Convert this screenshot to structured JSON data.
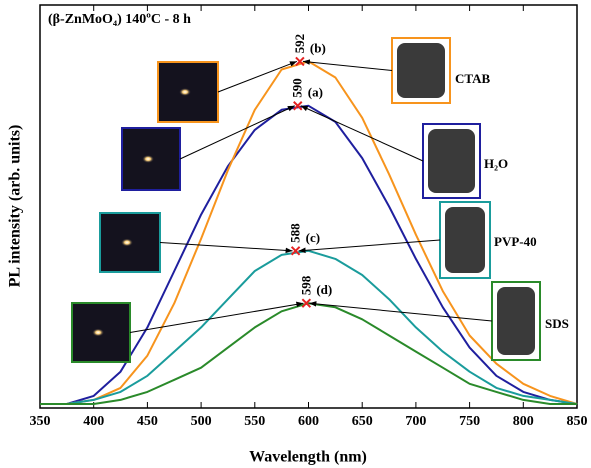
{
  "chart_data": {
    "type": "line",
    "title": "(β-ZnMoO₄) 140ºC - 8 h",
    "x_label": "Wavelength (nm)",
    "y_label": "PL intensity (arb. units)",
    "x": [
      350,
      375,
      400,
      425,
      450,
      475,
      500,
      525,
      550,
      575,
      600,
      625,
      650,
      675,
      700,
      725,
      750,
      775,
      800,
      825,
      850
    ],
    "series": [
      {
        "color": "#1f1f9e",
        "values": [
          1,
          1,
          3,
          9,
          20,
          34,
          48,
          60,
          69,
          74,
          75,
          71,
          62,
          50,
          37,
          25,
          15,
          8,
          4,
          2,
          1
        ]
      },
      {
        "color": "#f7941d",
        "values": [
          1,
          1,
          2,
          5,
          13,
          26,
          42,
          59,
          74,
          84,
          86,
          82,
          72,
          58,
          43,
          29,
          18,
          11,
          6,
          3,
          1
        ]
      },
      {
        "color": "#1a9c9c",
        "values": [
          1,
          1,
          2,
          4,
          8,
          14,
          20,
          27,
          34,
          38,
          39,
          37,
          33,
          27,
          20,
          14,
          9,
          5,
          3,
          2,
          1
        ]
      },
      {
        "color": "#2a8a2a",
        "values": [
          1,
          1,
          1,
          2,
          4,
          7,
          10,
          15,
          20,
          24,
          26,
          25,
          22,
          18,
          14,
          10,
          6,
          4,
          2,
          1,
          1
        ]
      }
    ],
    "peaks": [
      {
        "wavelength": 590,
        "intensity": 75,
        "label": "(a)",
        "sample": "H₂O"
      },
      {
        "wavelength": 592,
        "intensity": 86,
        "label": "(b)",
        "sample": "CTAB"
      },
      {
        "wavelength": 588,
        "intensity": 39,
        "label": "(c)",
        "sample": "PVP-40"
      },
      {
        "wavelength": 598,
        "intensity": 26,
        "label": "(d)",
        "sample": "SDS"
      }
    ],
    "xlim": [
      350,
      850
    ],
    "ylim": [
      0,
      100
    ],
    "xticks": [
      350,
      400,
      450,
      500,
      550,
      600,
      650,
      700,
      750,
      800,
      850
    ]
  }
}
